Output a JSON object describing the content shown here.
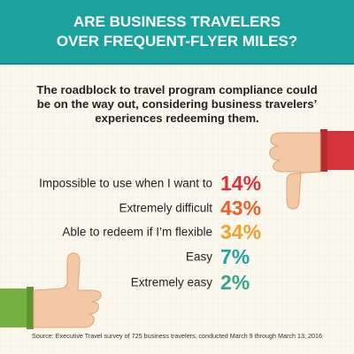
{
  "header": {
    "title_lines": [
      "ARE BUSINESS TRAVELERS",
      "OVER FREQUENT-FLYER MILES?"
    ]
  },
  "subtitle_lines": [
    "The roadblock to travel program compliance could",
    "be on the way out, considering business travelers’",
    "experiences redeeming them."
  ],
  "items": [
    {
      "label": "Impossible to use when I want to",
      "value": "14%"
    },
    {
      "label": "Extremely difficult",
      "value": "43%"
    },
    {
      "label": "Able to redeem if I’m flexible",
      "value": "34%"
    },
    {
      "label": "Easy",
      "value": "7%"
    },
    {
      "label": "Extremely easy",
      "value": "2%"
    }
  ],
  "source": "Source: Executive Travel survey of 725 business travelers, conducted March 9 through March 13, 2016"
}
